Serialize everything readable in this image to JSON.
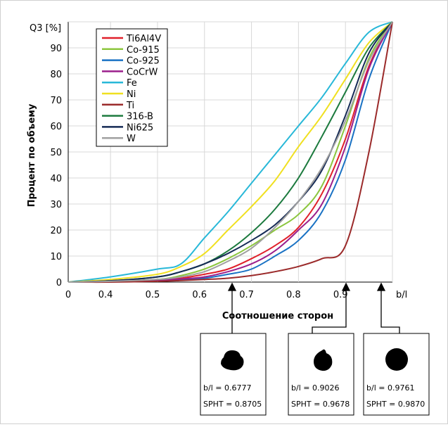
{
  "chart_data": {
    "type": "line",
    "y_label": "Процент по объему",
    "y_unit_label": "Q3 [%]",
    "x_label": "Соотношение сторон",
    "x_end_label": "b/l",
    "x": [
      0.31,
      0.4,
      0.5,
      0.55,
      0.6,
      0.65,
      0.7,
      0.75,
      0.8,
      0.85,
      0.9,
      0.95,
      1.0
    ],
    "xlim": [
      0.31,
      1.0
    ],
    "xticks": [
      {
        "value": 0.31,
        "label": "0"
      },
      0.4,
      0.5,
      0.6,
      0.7,
      0.8,
      0.9
    ],
    "ylim": [
      0,
      100
    ],
    "yticks": [
      0,
      10,
      20,
      30,
      40,
      50,
      60,
      70,
      80,
      90
    ],
    "grid": true,
    "legend": "upper left",
    "series": [
      {
        "name": "Ti6Al4V",
        "color": "#e0202a",
        "values": [
          0,
          0.2,
          1,
          1.5,
          3,
          5,
          9,
          14,
          21,
          34,
          55,
          83,
          100
        ]
      },
      {
        "name": "Co-915",
        "color": "#8cc63e",
        "values": [
          0,
          0.3,
          1,
          2.5,
          5,
          9,
          14,
          20,
          26,
          37,
          60,
          86,
          100
        ]
      },
      {
        "name": "Co-925",
        "color": "#1a72c4",
        "values": [
          0,
          0.1,
          0.5,
          1,
          1.5,
          3,
          5,
          10,
          16,
          27,
          47,
          78,
          100
        ]
      },
      {
        "name": "CoCrW",
        "color": "#9b1f8c",
        "values": [
          0,
          0.2,
          0.7,
          1.2,
          2,
          4,
          7,
          12,
          20,
          30,
          52,
          82,
          100
        ]
      },
      {
        "name": "Fe",
        "color": "#28b8d8",
        "values": [
          0,
          2,
          5,
          7,
          17,
          27,
          38,
          49,
          60,
          71,
          84,
          96,
          100
        ]
      },
      {
        "name": "Ni",
        "color": "#f0e020",
        "values": [
          0,
          1,
          3,
          6,
          11,
          20,
          29,
          39,
          52,
          64,
          78,
          92,
          100
        ]
      },
      {
        "name": "Ti",
        "color": "#9b2a2a",
        "values": [
          0,
          0,
          0.3,
          0.6,
          1,
          1.5,
          2.5,
          4,
          6,
          9,
          14,
          50,
          100
        ]
      },
      {
        "name": "316-B",
        "color": "#1c7a3e",
        "values": [
          0,
          0.5,
          2,
          4,
          7,
          12,
          19,
          28,
          40,
          56,
          73,
          90,
          100
        ]
      },
      {
        "name": "Ni625",
        "color": "#152a55",
        "values": [
          0,
          0.5,
          2,
          4,
          7,
          11,
          16,
          22,
          31,
          43,
          64,
          88,
          100
        ]
      },
      {
        "name": "W",
        "color": "#a0a0a0",
        "values": [
          0,
          0.3,
          1,
          2,
          4,
          8,
          13,
          21,
          31,
          44,
          62,
          85,
          100
        ]
      }
    ],
    "particles": [
      {
        "bl": "b/l = 0.6777",
        "spht": "SPHT = 0.8705"
      },
      {
        "bl": "b/l = 0.9026",
        "spht": "SPHT = 0.9678"
      },
      {
        "bl": "b/l = 0.9761",
        "spht": "SPHT = 0.9870"
      }
    ]
  }
}
